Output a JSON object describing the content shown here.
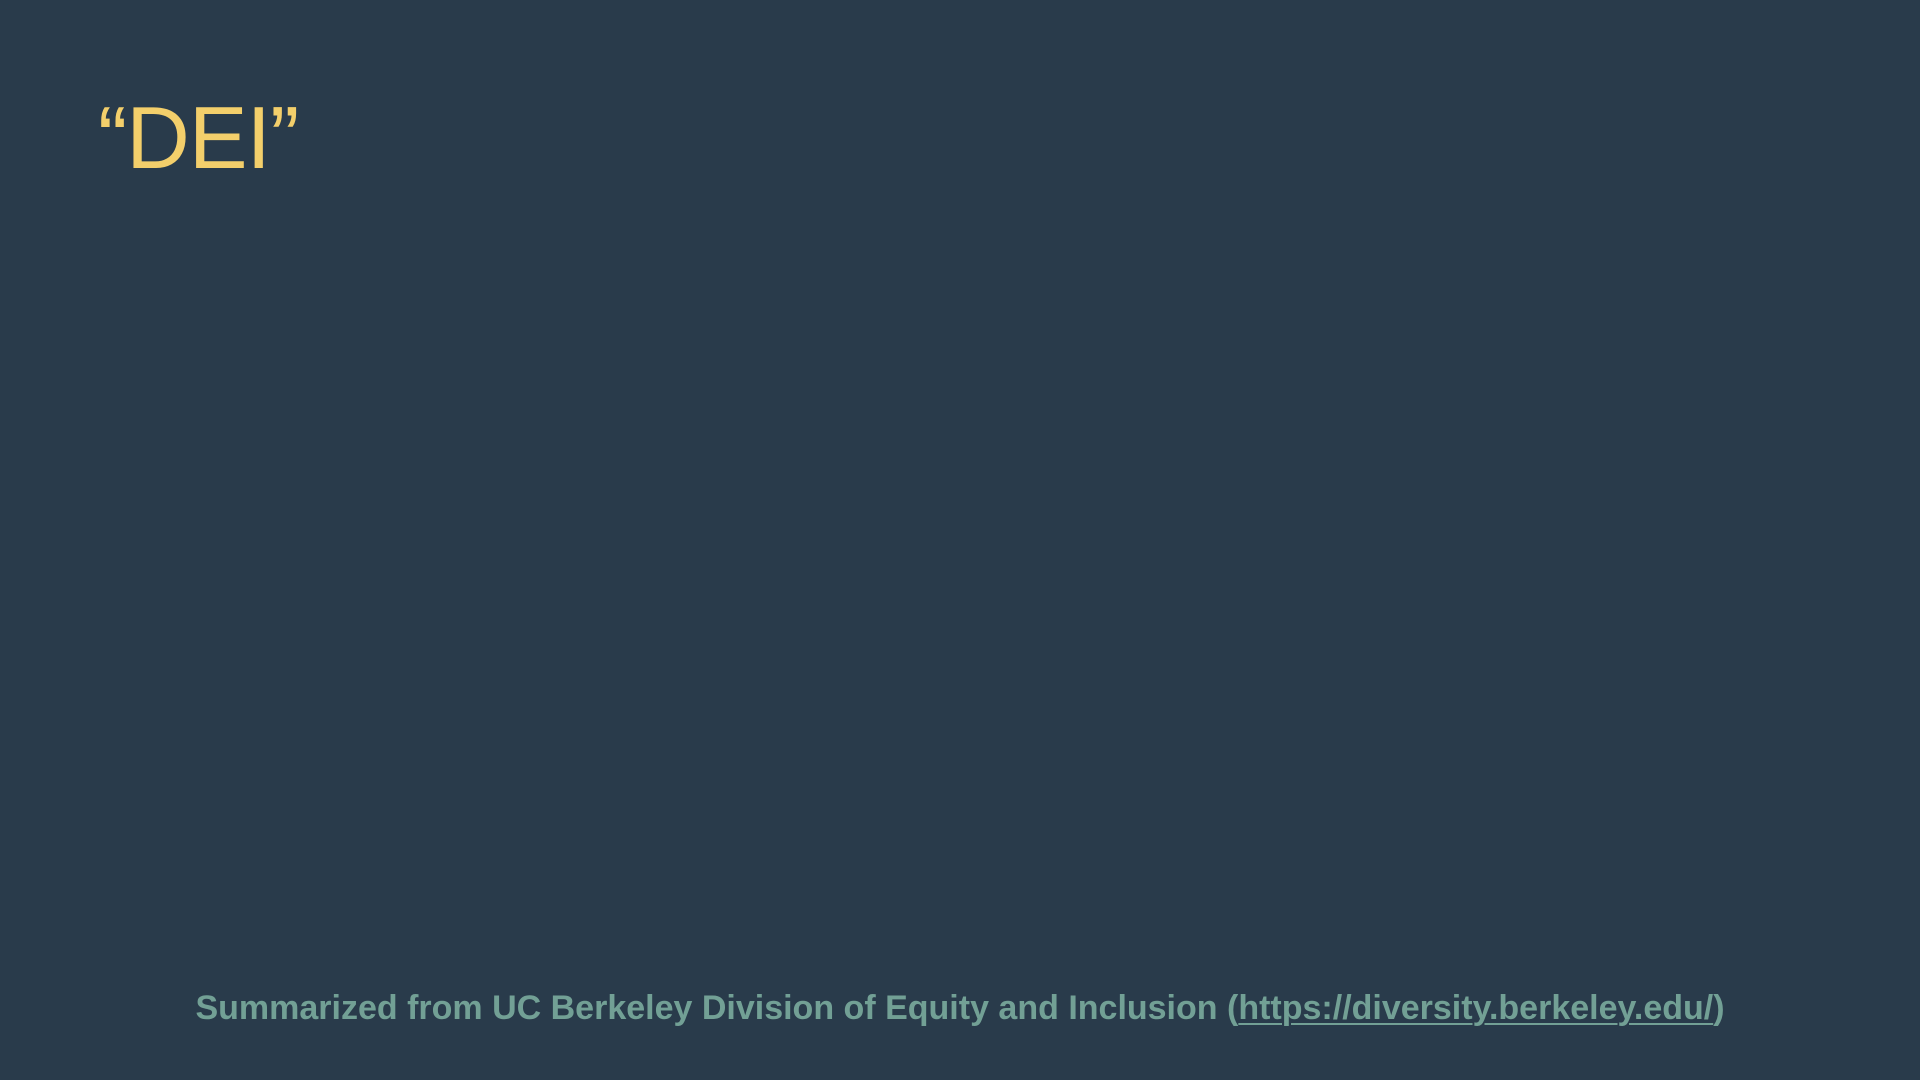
{
  "slide": {
    "title": "“DEI”",
    "footer": {
      "prefix": "Summarized from UC Berkeley Division of Equity and Inclusion (",
      "link_text": "https://diversity.berkeley.edu/",
      "suffix": ")"
    }
  },
  "colors": {
    "background": "#293b4b",
    "title": "#f3cf6b",
    "footer": "#72a095"
  }
}
